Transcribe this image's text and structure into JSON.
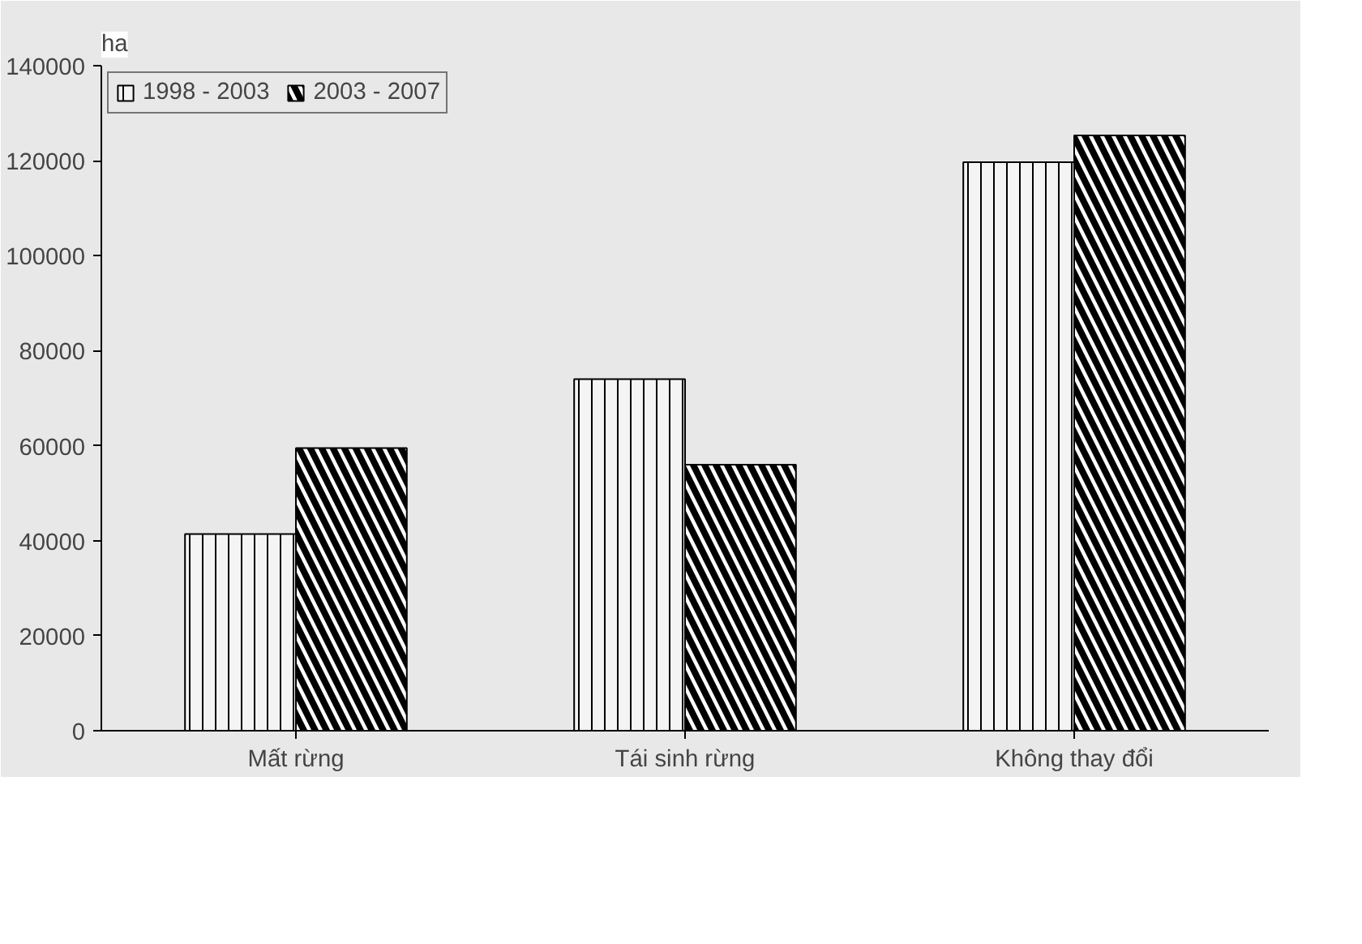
{
  "chart_data": {
    "type": "bar",
    "ylabel": "ha",
    "categories": [
      "Mất rừng",
      "Tái sinh rừng",
      "Không thay đổi"
    ],
    "series": [
      {
        "name": "1998 - 2003",
        "color": "#f4f4f4",
        "values": [
          41400,
          74000,
          119700
        ]
      },
      {
        "name": "2003 - 2007",
        "color": "#ffffff",
        "values": [
          59500,
          56000,
          125300
        ]
      }
    ],
    "ylim": [
      0,
      140000
    ],
    "yticks": [
      0,
      20000,
      40000,
      60000,
      80000,
      100000,
      120000,
      140000
    ],
    "grid": false,
    "legend": "top left"
  }
}
